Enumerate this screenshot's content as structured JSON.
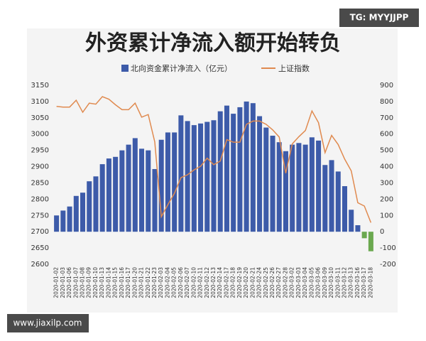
{
  "chart_data": {
    "type": "bar",
    "title": "外资累计净流入额开始转负",
    "categories": [
      "2020-01-02",
      "2020-01-03",
      "2020-01-06",
      "2020-01-07",
      "2020-01-08",
      "2020-01-09",
      "2020-01-10",
      "2020-01-13",
      "2020-01-14",
      "2020-01-15",
      "2020-01-16",
      "2020-01-17",
      "2020-01-20",
      "2020-01-21",
      "2020-01-22",
      "2020-01-23",
      "2020-02-03",
      "2020-02-04",
      "2020-02-05",
      "2020-02-06",
      "2020-02-07",
      "2020-02-10",
      "2020-02-11",
      "2020-02-12",
      "2020-02-13",
      "2020-02-14",
      "2020-02-17",
      "2020-02-18",
      "2020-02-19",
      "2020-02-20",
      "2020-02-21",
      "2020-02-24",
      "2020-02-25",
      "2020-02-26",
      "2020-02-27",
      "2020-02-28",
      "2020-03-02",
      "2020-03-03",
      "2020-03-04",
      "2020-03-05",
      "2020-03-06",
      "2020-03-09",
      "2020-03-10",
      "2020-03-11",
      "2020-03-12",
      "2020-03-13",
      "2020-03-16",
      "2020-03-17",
      "2020-03-18"
    ],
    "series": [
      {
        "name": "北向资金累计净流入（亿元）",
        "type": "bar",
        "axis": "y2",
        "color": "#3d5ba9",
        "negative_color": "#6aa84f",
        "values": [
          100,
          130,
          155,
          220,
          240,
          310,
          340,
          415,
          450,
          460,
          500,
          535,
          575,
          510,
          500,
          385,
          565,
          610,
          610,
          715,
          680,
          655,
          665,
          675,
          685,
          740,
          775,
          725,
          765,
          800,
          790,
          710,
          640,
          590,
          550,
          495,
          535,
          545,
          535,
          580,
          560,
          410,
          440,
          370,
          280,
          135,
          40,
          -40,
          -120
        ]
      },
      {
        "name": "上证指数",
        "type": "line",
        "color": "#e08a4f",
        "values": [
          3085,
          3083,
          3083,
          3104,
          3067,
          3095,
          3092,
          3115,
          3107,
          3090,
          3075,
          3075,
          3095,
          3052,
          3060,
          2976,
          2746,
          2783,
          2818,
          2866,
          2875,
          2890,
          2901,
          2926,
          2906,
          2917,
          2983,
          2975,
          2975,
          3030,
          3040,
          3040,
          3030,
          3013,
          2991,
          2880,
          2970,
          2992,
          3011,
          3071,
          3035,
          2943,
          2996,
          2968,
          2923,
          2887,
          2789,
          2779,
          2728
        ]
      }
    ],
    "ylim": [
      2600,
      3150
    ],
    "yticks": [
      2600,
      2650,
      2700,
      2750,
      2800,
      2850,
      2900,
      2950,
      3000,
      3050,
      3100,
      3150
    ],
    "y2lim": [
      -200,
      900
    ],
    "y2ticks": [
      -200,
      -100,
      0,
      100,
      200,
      300,
      400,
      500,
      600,
      700,
      800,
      900
    ],
    "legend": "top"
  },
  "watermarks": {
    "top_right": "TG: MYYJJPP",
    "bottom_left": "www.jiaxilp.com"
  }
}
